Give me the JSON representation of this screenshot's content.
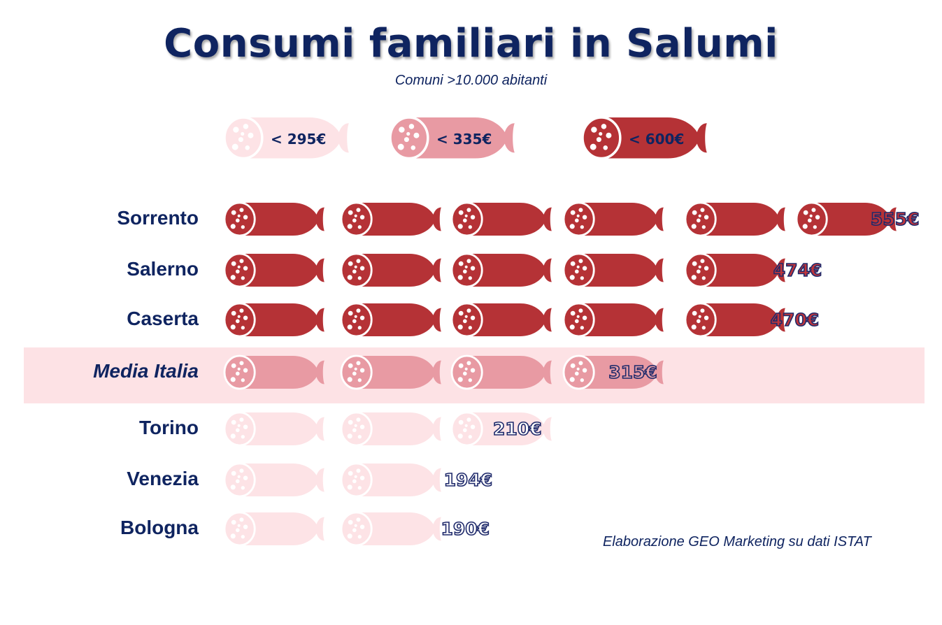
{
  "title": "Consumi familiari in Salumi",
  "subtitle": "Comuni >10.000 abitanti",
  "source": "Elaborazione GEO Marketing su dati ISTAT",
  "colors": {
    "high": "#b53236",
    "mid": "#e89aa3",
    "low": "#fde3e6",
    "band": "#fde2e5",
    "text": "#0f2460"
  },
  "legend": [
    {
      "label": "< 295€",
      "tier": "low"
    },
    {
      "label": "< 335€",
      "tier": "mid"
    },
    {
      "label": "< 600€",
      "tier": "high"
    }
  ],
  "chart_data": {
    "type": "bar",
    "title": "Consumi familiari in Salumi",
    "subtitle": "Comuni >10.000 abitanti",
    "categories": [
      "Sorrento",
      "Salerno",
      "Caserta",
      "Media Italia",
      "Torino",
      "Venezia",
      "Bologna"
    ],
    "values": [
      555,
      474,
      470,
      315,
      210,
      194,
      190
    ],
    "value_labels": [
      "555€",
      "474€",
      "470€",
      "315€",
      "210€",
      "194€",
      "190€"
    ],
    "tiers": [
      "high",
      "high",
      "high",
      "mid",
      "low",
      "low",
      "low"
    ],
    "unit": "€",
    "icon_value": 100
  }
}
